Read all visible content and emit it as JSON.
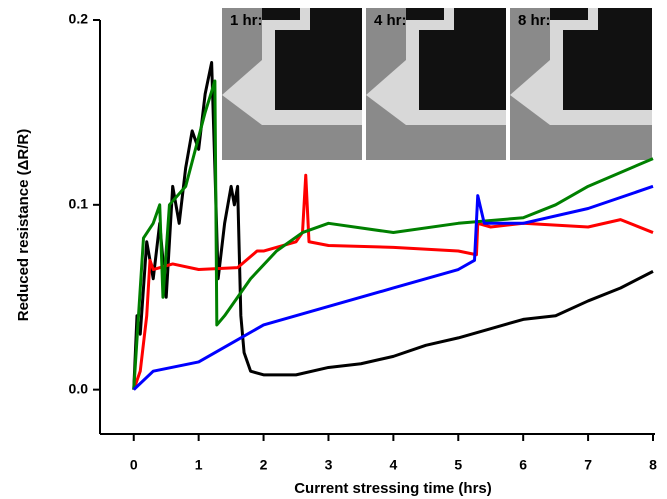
{
  "chart_data": {
    "type": "line",
    "xlabel": "Current stressing time (hrs)",
    "ylabel": "Reduced resistance (ΔR/R)",
    "insets": [
      "1 hr:",
      "4 hr:",
      "8 hr:"
    ],
    "xlim": [
      -0.52,
      8
    ],
    "ylim": [
      -0.024,
      0.2
    ],
    "xticks": [
      0,
      1,
      2,
      3,
      4,
      5,
      6,
      7,
      8
    ],
    "yticks": [
      {
        "value": 0,
        "label": "0.0"
      },
      {
        "value": 0.1,
        "label": "0.1"
      },
      0.2
    ],
    "series": [
      {
        "color": "#000000",
        "x": [
          0,
          0.05,
          0.1,
          0.2,
          0.3,
          0.4,
          0.5,
          0.6,
          0.7,
          0.8,
          0.9,
          1.0,
          1.1,
          1.2,
          1.25,
          1.3,
          1.4,
          1.5,
          1.55,
          1.6,
          1.65,
          1.7,
          1.8,
          2,
          2.5,
          3,
          3.5,
          4,
          4.5,
          5,
          5.5,
          6,
          6.5,
          7,
          7.5,
          8
        ],
        "values": [
          0,
          0.04,
          0.03,
          0.08,
          0.06,
          0.09,
          0.05,
          0.11,
          0.09,
          0.12,
          0.14,
          0.13,
          0.16,
          0.177,
          0.12,
          0.06,
          0.09,
          0.11,
          0.1,
          0.11,
          0.04,
          0.02,
          0.01,
          0.008,
          0.008,
          0.012,
          0.014,
          0.018,
          0.024,
          0.028,
          0.033,
          0.038,
          0.04,
          0.048,
          0.055,
          0.064
        ]
      },
      {
        "color": "#ff0000",
        "x": [
          0,
          0.1,
          0.2,
          0.25,
          0.3,
          0.6,
          1.0,
          1.6,
          1.9,
          2.0,
          2.5,
          2.6,
          2.65,
          2.7,
          3,
          4,
          5,
          5.28,
          5.3,
          5.5,
          6,
          7,
          7.5,
          8
        ],
        "values": [
          0,
          0.01,
          0.04,
          0.07,
          0.065,
          0.068,
          0.065,
          0.066,
          0.075,
          0.075,
          0.08,
          0.085,
          0.116,
          0.08,
          0.078,
          0.077,
          0.075,
          0.073,
          0.09,
          0.088,
          0.09,
          0.088,
          0.092,
          0.085
        ]
      },
      {
        "color": "#008000",
        "x": [
          0,
          0.15,
          0.3,
          0.4,
          0.45,
          0.55,
          0.8,
          1.1,
          1.25,
          1.28,
          1.4,
          1.8,
          2.2,
          2.6,
          3,
          4,
          5,
          6,
          6.5,
          7,
          8
        ],
        "values": [
          0,
          0.082,
          0.09,
          0.1,
          0.05,
          0.1,
          0.11,
          0.15,
          0.167,
          0.035,
          0.04,
          0.06,
          0.075,
          0.085,
          0.09,
          0.085,
          0.09,
          0.093,
          0.1,
          0.11,
          0.125
        ]
      },
      {
        "color": "#0000ff",
        "x": [
          0,
          0.3,
          1,
          1.5,
          2,
          3,
          4,
          5,
          5.25,
          5.3,
          5.4,
          6,
          7,
          8
        ],
        "values": [
          0,
          0.01,
          0.015,
          0.025,
          0.035,
          0.045,
          0.055,
          0.065,
          0.07,
          0.105,
          0.09,
          0.09,
          0.098,
          0.11
        ]
      }
    ]
  }
}
